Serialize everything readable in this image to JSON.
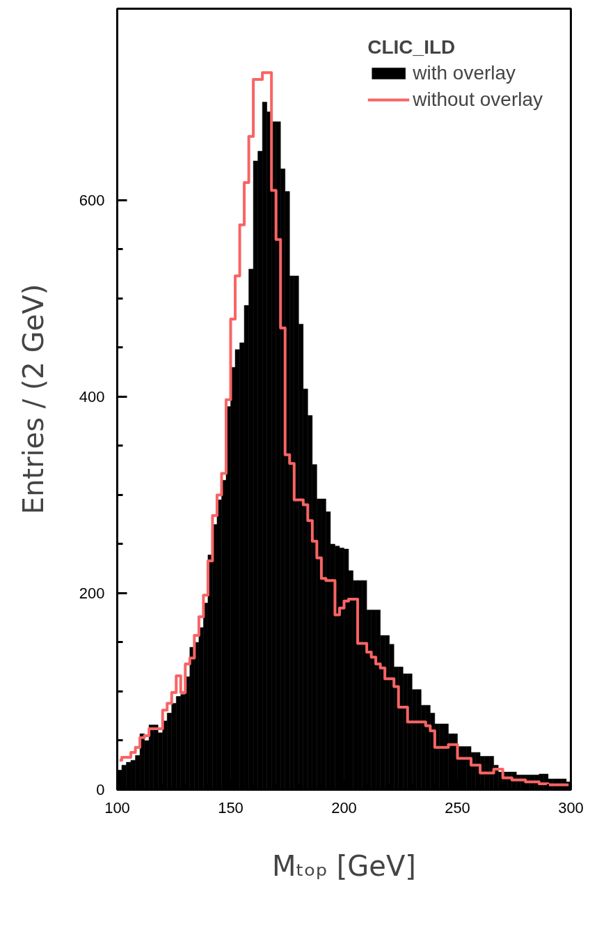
{
  "chart_data": {
    "type": "histogram",
    "xlabel": "Mₜₒₚ [GeV]",
    "ylabel": "Entries / (2 GeV)",
    "legend_title": "CLIC_ILD",
    "bins": [
      100,
      102,
      104,
      106,
      108,
      110,
      112,
      114,
      116,
      118,
      120,
      122,
      124,
      126,
      128,
      130,
      132,
      134,
      136,
      138,
      140,
      142,
      144,
      146,
      148,
      150,
      152,
      154,
      156,
      158,
      160,
      162,
      164,
      166,
      168,
      170,
      172,
      174,
      176,
      178,
      180,
      182,
      184,
      186,
      188,
      190,
      192,
      194,
      196,
      198,
      200,
      202,
      204,
      206,
      208,
      210,
      212,
      214,
      216,
      218,
      220,
      222,
      224,
      226,
      228,
      230,
      232,
      234,
      236,
      238,
      240,
      242,
      244,
      246,
      248,
      250,
      252,
      254,
      256,
      258,
      260,
      262,
      264,
      266,
      268,
      270,
      272,
      274,
      276,
      278,
      280,
      282,
      284,
      286,
      288,
      290,
      292,
      294,
      296,
      298,
      300
    ],
    "series": [
      {
        "name": "with overlay",
        "color": "#000000",
        "values": [
          20,
          25,
          28,
          30,
          35,
          57,
          50,
          66,
          66,
          58,
          70,
          78,
          88,
          95,
          97,
          115,
          145,
          150,
          165,
          190,
          239,
          270,
          295,
          315,
          390,
          430,
          448,
          455,
          493,
          530,
          640,
          650,
          700,
          690,
          680,
          680,
          632,
          609,
          523,
          523,
          474,
          408,
          381,
          331,
          296,
          296,
          283,
          250,
          248,
          246,
          245,
          223,
          213,
          213,
          213,
          183,
          183,
          183,
          157,
          157,
          148,
          125,
          125,
          118,
          118,
          102,
          102,
          86,
          86,
          78,
          67,
          67,
          67,
          57,
          57,
          44,
          44,
          44,
          38,
          38,
          34,
          34,
          34,
          25,
          18,
          18,
          18,
          18,
          15,
          15,
          15,
          15,
          15,
          16,
          16,
          11,
          11,
          11,
          11,
          8
        ]
      },
      {
        "name": "without overlay",
        "type": "step",
        "color": "#f86464",
        "x": [
          101,
          103,
          105,
          107,
          109,
          111,
          113,
          115,
          117,
          119,
          121,
          123,
          125,
          127,
          129,
          131,
          133,
          135,
          137,
          139,
          141,
          143,
          145,
          147,
          149,
          151,
          153,
          155,
          157,
          159,
          161,
          163,
          165,
          167,
          169,
          171,
          173,
          175,
          177,
          179,
          181,
          183,
          185,
          187,
          189,
          191,
          193,
          195,
          197,
          199,
          201,
          203,
          205,
          207,
          209,
          211,
          213,
          215,
          217,
          219,
          221,
          223,
          225,
          227,
          229,
          231,
          233,
          235,
          237,
          239,
          241,
          243,
          245,
          247,
          249,
          251,
          253,
          255,
          257,
          259,
          261,
          263,
          265,
          267,
          269,
          271,
          273,
          275,
          277,
          279,
          281,
          283,
          285,
          287,
          289,
          291,
          293,
          295,
          297,
          299
        ],
        "values": [
          30,
          33,
          33,
          38,
          43,
          53,
          55,
          62,
          62,
          62,
          81,
          88,
          99,
          116,
          99,
          128,
          134,
          157,
          176,
          198,
          233,
          279,
          300,
          322,
          397,
          479,
          523,
          575,
          618,
          665,
          723,
          723,
          730,
          730,
          610,
          560,
          470,
          341,
          332,
          295,
          295,
          290,
          274,
          253,
          236,
          215,
          213,
          213,
          178,
          185,
          192,
          194,
          194,
          149,
          149,
          140,
          135,
          128,
          124,
          113,
          113,
          105,
          84,
          84,
          69,
          69,
          69,
          69,
          65,
          60,
          43,
          43,
          43,
          46,
          46,
          32,
          32,
          32,
          25,
          25,
          17,
          17,
          17,
          21,
          21,
          12,
          12,
          10,
          10,
          10,
          8,
          8,
          8,
          6,
          6,
          5,
          5,
          5,
          5,
          5
        ]
      }
    ],
    "xlim": [
      100,
      300
    ],
    "ylim": [
      0,
      795
    ],
    "xticks": [
      100,
      150,
      200,
      250,
      300
    ],
    "yticks": [
      0,
      200,
      400,
      600
    ],
    "grid": false,
    "legend": "top right"
  }
}
